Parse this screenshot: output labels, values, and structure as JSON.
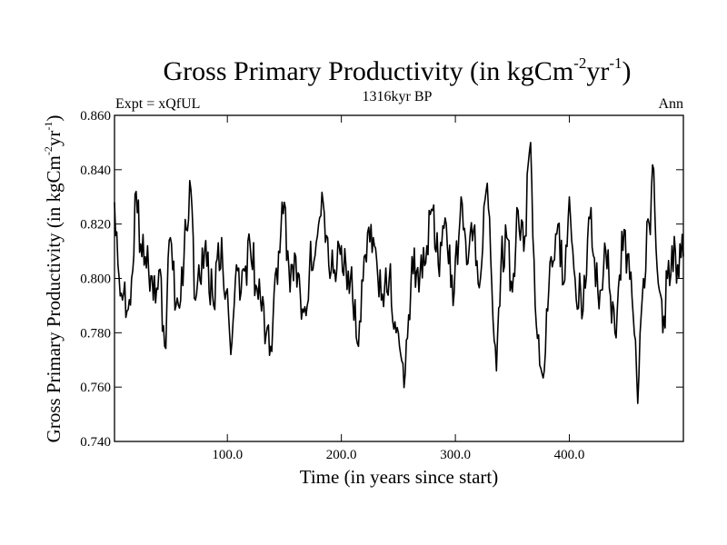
{
  "chart_data": {
    "type": "line",
    "title": "Gross Primary Productivity (in kgCm",
    "title_sup1": "-2",
    "title_mid": "yr",
    "title_sup2": "-1",
    "title_end": ")",
    "subtitle_left": "Expt = xQfUL",
    "subtitle_center": "1316kyr BP",
    "subtitle_right": "Ann",
    "xlabel": "Time (in years since start)",
    "ylabel": "Gross Primary Productivity (in kgCm",
    "ylabel_sup1": "-2",
    "ylabel_mid": "yr",
    "ylabel_sup2": "-1",
    "ylabel_end": ")",
    "xlim": [
      1,
      500
    ],
    "ylim": [
      0.74,
      0.86
    ],
    "xticks": [
      100,
      200,
      300,
      400
    ],
    "xtick_labels": [
      "100.0",
      "200.0",
      "300.0",
      "400.0"
    ],
    "yticks": [
      0.74,
      0.76,
      0.78,
      0.8,
      0.82,
      0.84,
      0.86
    ],
    "ytick_labels": [
      "0.740",
      "0.760",
      "0.780",
      "0.800",
      "0.820",
      "0.840",
      "0.860"
    ],
    "line_color": "#000000",
    "keypoints": [
      [
        1,
        0.828
      ],
      [
        4,
        0.805
      ],
      [
        8,
        0.792
      ],
      [
        12,
        0.788
      ],
      [
        16,
        0.8
      ],
      [
        20,
        0.832
      ],
      [
        25,
        0.808
      ],
      [
        30,
        0.812
      ],
      [
        35,
        0.792
      ],
      [
        40,
        0.803
      ],
      [
        45,
        0.775
      ],
      [
        50,
        0.815
      ],
      [
        55,
        0.79
      ],
      [
        62,
        0.808
      ],
      [
        67,
        0.836
      ],
      [
        72,
        0.792
      ],
      [
        80,
        0.81
      ],
      [
        88,
        0.79
      ],
      [
        95,
        0.815
      ],
      [
        103,
        0.772
      ],
      [
        108,
        0.805
      ],
      [
        112,
        0.795
      ],
      [
        120,
        0.812
      ],
      [
        130,
        0.788
      ],
      [
        138,
        0.775
      ],
      [
        145,
        0.81
      ],
      [
        150,
        0.828
      ],
      [
        155,
        0.795
      ],
      [
        160,
        0.808
      ],
      [
        165,
        0.785
      ],
      [
        172,
        0.803
      ],
      [
        180,
        0.82
      ],
      [
        184,
        0.828
      ],
      [
        190,
        0.8
      ],
      [
        200,
        0.812
      ],
      [
        208,
        0.8
      ],
      [
        215,
        0.775
      ],
      [
        220,
        0.808
      ],
      [
        228,
        0.815
      ],
      [
        235,
        0.792
      ],
      [
        242,
        0.8
      ],
      [
        248,
        0.78
      ],
      [
        252,
        0.772
      ],
      [
        256,
        0.765
      ],
      [
        262,
        0.808
      ],
      [
        268,
        0.795
      ],
      [
        275,
        0.812
      ],
      [
        280,
        0.825
      ],
      [
        285,
        0.805
      ],
      [
        292,
        0.82
      ],
      [
        298,
        0.79
      ],
      [
        305,
        0.83
      ],
      [
        310,
        0.805
      ],
      [
        316,
        0.818
      ],
      [
        322,
        0.8
      ],
      [
        328,
        0.835
      ],
      [
        333,
        0.785
      ],
      [
        336,
        0.766
      ],
      [
        340,
        0.805
      ],
      [
        345,
        0.815
      ],
      [
        350,
        0.795
      ],
      [
        355,
        0.825
      ],
      [
        360,
        0.81
      ],
      [
        366,
        0.85
      ],
      [
        370,
        0.79
      ],
      [
        374,
        0.768
      ],
      [
        378,
        0.766
      ],
      [
        384,
        0.808
      ],
      [
        390,
        0.82
      ],
      [
        395,
        0.798
      ],
      [
        400,
        0.83
      ],
      [
        405,
        0.8
      ],
      [
        412,
        0.788
      ],
      [
        418,
        0.822
      ],
      [
        425,
        0.795
      ],
      [
        432,
        0.81
      ],
      [
        440,
        0.78
      ],
      [
        448,
        0.818
      ],
      [
        455,
        0.793
      ],
      [
        460,
        0.754
      ],
      [
        465,
        0.8
      ],
      [
        470,
        0.82
      ],
      [
        474,
        0.84
      ],
      [
        478,
        0.798
      ],
      [
        482,
        0.78
      ],
      [
        486,
        0.8
      ],
      [
        490,
        0.812
      ],
      [
        495,
        0.805
      ],
      [
        500,
        0.808
      ]
    ],
    "noise_amplitude": 0.009,
    "seed": 1316
  }
}
